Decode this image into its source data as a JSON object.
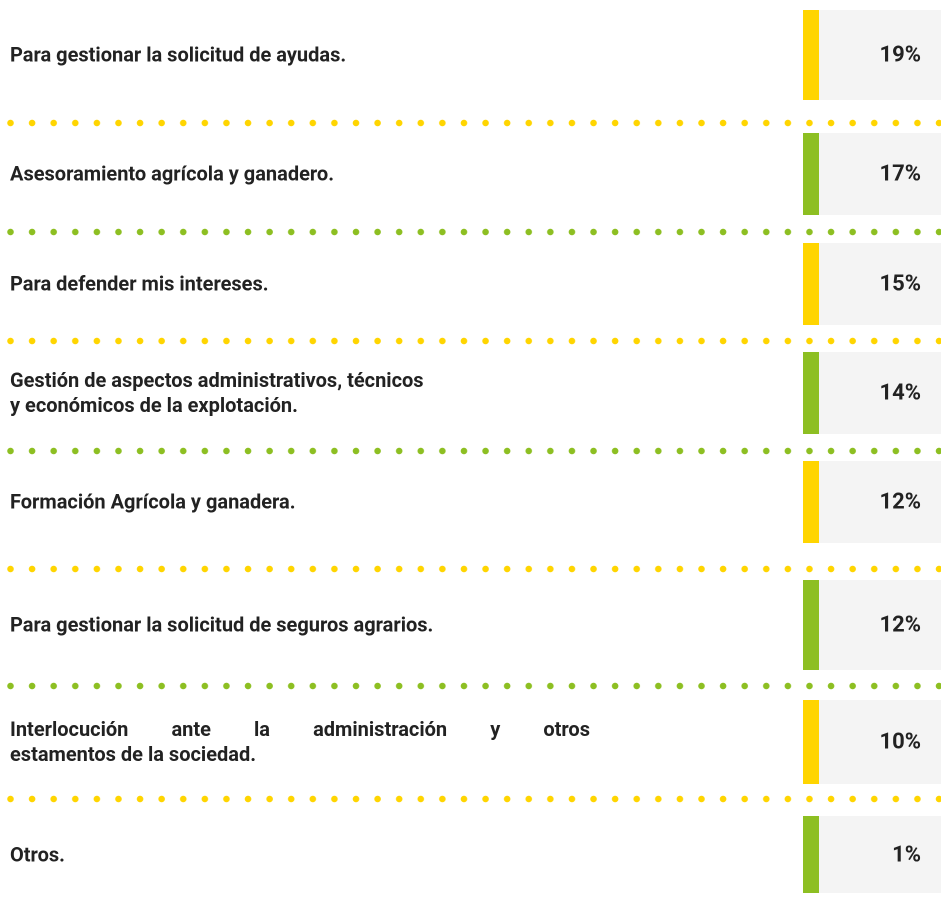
{
  "rows": [
    {
      "lines": [
        "Para gestionar la solicitud de ayudas."
      ],
      "value": "19%"
    },
    {
      "lines": [
        "Asesoramiento agrícola y ganadero."
      ],
      "value": "17%"
    },
    {
      "lines": [
        "Para defender mis intereses."
      ],
      "value": "15%"
    },
    {
      "lines": [
        "Gestión de aspectos administrativos, técnicos",
        "y económicos de la explotación."
      ],
      "value": "14%"
    },
    {
      "lines": [
        "Formación Agrícola y ganadera."
      ],
      "value": "12%"
    },
    {
      "lines": [
        "Para gestionar la solicitud de seguros agrarios."
      ],
      "value": "12%"
    },
    {
      "lines": [
        "Interlocución ante la administración y otros",
        "estamentos de la sociedad."
      ],
      "value": "10%"
    },
    {
      "lines": [
        "Otros."
      ],
      "value": "1%"
    }
  ]
}
